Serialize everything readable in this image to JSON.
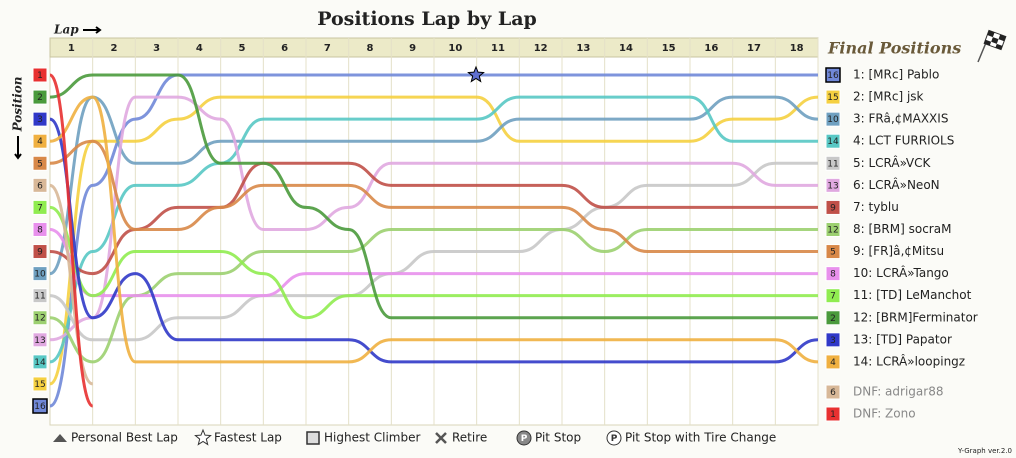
{
  "chart_data": {
    "type": "line",
    "title": "Positions Lap by Lap",
    "x_label": "Lap",
    "y_label": "Position",
    "final_title": "Final Positions",
    "version": "Y-Graph ver.2.0",
    "categories": [
      null,
      1,
      2,
      3,
      4,
      5,
      6,
      7,
      8,
      9,
      10,
      11,
      12,
      13,
      14,
      15,
      16,
      17,
      18
    ],
    "ylim": [
      1,
      16
    ],
    "y_inverted": true,
    "series": [
      {
        "name": "1: [MRc] Pablo",
        "color": "#7088d8",
        "values": [
          16,
          6,
          3,
          1,
          1,
          1,
          1,
          1,
          1,
          1,
          1,
          1,
          1,
          1,
          1,
          1,
          1,
          1,
          1
        ]
      },
      {
        "name": "2: [MRc] jsk",
        "color": "#f5d040",
        "values": [
          15,
          4,
          4,
          3,
          2,
          2,
          2,
          2,
          2,
          2,
          2,
          4,
          4,
          4,
          4,
          4,
          3,
          3,
          2
        ]
      },
      {
        "name": "3: FRâ‚¢MAXXIS",
        "color": "#6fa0c0",
        "values": [
          10,
          2,
          5,
          5,
          4,
          4,
          4,
          4,
          4,
          4,
          4,
          3,
          3,
          3,
          3,
          3,
          2,
          2,
          3
        ]
      },
      {
        "name": "4: LCT FURRIOLS",
        "color": "#58c8c4",
        "values": [
          14,
          9,
          6,
          6,
          5,
          3,
          3,
          3,
          3,
          3,
          3,
          2,
          2,
          2,
          2,
          2,
          4,
          4,
          4
        ]
      },
      {
        "name": "5: LCRÂ»VCK",
        "color": "#c8c8c8",
        "values": [
          11,
          13,
          13,
          12,
          12,
          11,
          11,
          11,
          10,
          9,
          9,
          9,
          8,
          7,
          6,
          6,
          6,
          5,
          5
        ]
      },
      {
        "name": "6: LCRÂ»NeoN",
        "color": "#e0a8e0",
        "values": [
          13,
          12,
          2,
          2,
          3,
          8,
          8,
          7,
          5,
          5,
          5,
          5,
          5,
          5,
          5,
          5,
          5,
          6,
          6
        ]
      },
      {
        "name": "7: tyblu",
        "color": "#c05048",
        "values": [
          9,
          10,
          8,
          7,
          7,
          5,
          5,
          5,
          6,
          6,
          6,
          6,
          6,
          7,
          7,
          7,
          7,
          7,
          7
        ]
      },
      {
        "name": "8: [BRM] socraM",
        "color": "#9cd070",
        "values": [
          12,
          14,
          11,
          10,
          10,
          9,
          9,
          9,
          8,
          8,
          8,
          8,
          8,
          9,
          8,
          8,
          8,
          8,
          8
        ]
      },
      {
        "name": "9: [FR]â‚¢Mitsu",
        "color": "#d88848",
        "values": [
          5,
          4,
          8,
          8,
          7,
          6,
          6,
          6,
          7,
          7,
          7,
          7,
          7,
          8,
          9,
          9,
          9,
          9,
          9
        ]
      },
      {
        "name": "10: LCRÂ»Tango",
        "color": "#e890ec",
        "values": [
          8,
          11,
          11,
          11,
          11,
          11,
          10,
          10,
          10,
          10,
          10,
          10,
          10,
          10,
          10,
          10,
          10,
          10,
          10
        ]
      },
      {
        "name": "11: [TD] LeManchot",
        "color": "#90ec50",
        "values": [
          7,
          11,
          9,
          9,
          9,
          10,
          12,
          11,
          11,
          11,
          11,
          11,
          11,
          11,
          11,
          11,
          11,
          11,
          11
        ]
      },
      {
        "name": "12: [BRM]Ferminator",
        "color": "#4a9a3c",
        "values": [
          2,
          1,
          1,
          1,
          5,
          5,
          7,
          8,
          12,
          12,
          12,
          12,
          12,
          12,
          12,
          12,
          12,
          12,
          12
        ]
      },
      {
        "name": "13: [TD] Papator",
        "color": "#3038c8",
        "values": [
          3,
          12,
          10,
          13,
          13,
          13,
          13,
          13,
          14,
          14,
          14,
          14,
          14,
          14,
          14,
          14,
          14,
          14,
          13
        ]
      },
      {
        "name": "14: LCRÂ»loopingz",
        "color": "#f0b040",
        "values": [
          4,
          2,
          14,
          14,
          14,
          14,
          14,
          14,
          13,
          13,
          13,
          13,
          13,
          13,
          13,
          13,
          13,
          13,
          14
        ]
      },
      {
        "name": "DNF: adrigar88",
        "color": "#d8b898",
        "values": [
          6,
          15,
          null,
          null,
          null,
          null,
          null,
          null,
          null,
          null,
          null,
          null,
          null,
          null,
          null,
          null,
          null,
          null,
          null
        ]
      },
      {
        "name": "DNF: Zono",
        "color": "#e83030",
        "values": [
          1,
          16,
          null,
          null,
          null,
          null,
          null,
          null,
          null,
          null,
          null,
          null,
          null,
          null,
          null,
          null,
          null,
          null,
          null
        ]
      }
    ],
    "legend": [
      "Personal Best Lap",
      "Fastest Lap",
      "Highest Climber",
      "Retire",
      "Pit Stop",
      "Pit Stop with Tire Change"
    ],
    "pit_icon": "P"
  }
}
